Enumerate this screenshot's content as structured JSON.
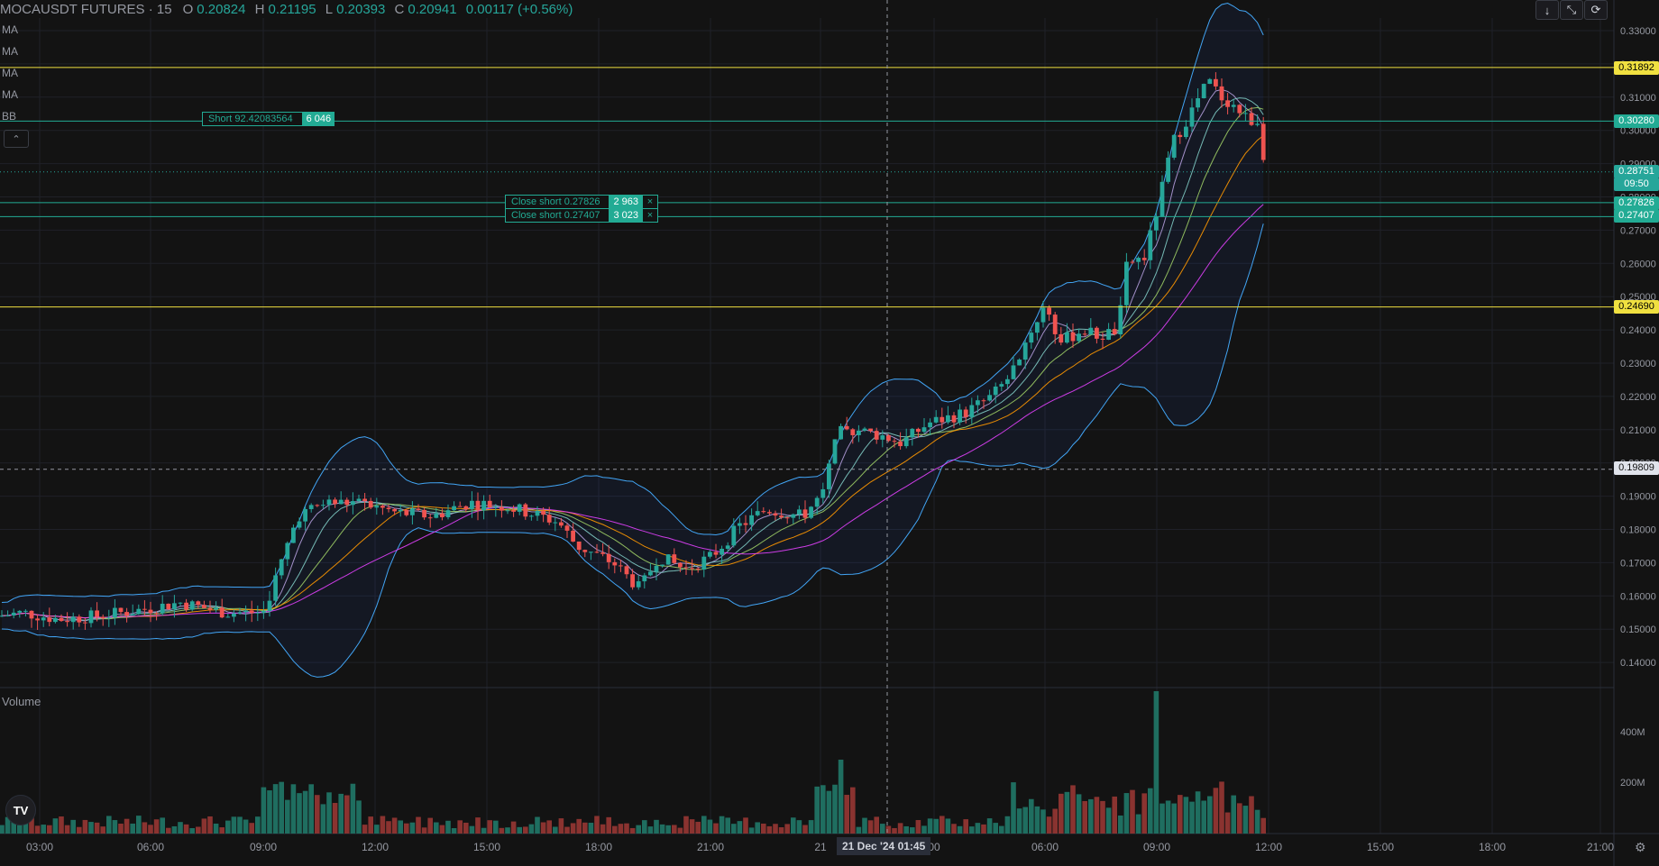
{
  "header": {
    "symbol": "MOCAUSDT FUTURES · 15",
    "ohlc": [
      {
        "k": "O",
        "v": "0.20824"
      },
      {
        "k": "H",
        "v": "0.21195"
      },
      {
        "k": "L",
        "v": "0.20393"
      },
      {
        "k": "C",
        "v": "0.20941"
      }
    ],
    "change": "0.00117 (+0.56%)"
  },
  "indicators": [
    "MA",
    "MA",
    "MA",
    "MA",
    "BB"
  ],
  "orders": {
    "short": {
      "label": "Short 92.42083564",
      "qty": "6 046"
    },
    "close1": {
      "label": "Close short 0.27826",
      "qty": "2 963",
      "close_icon": "×"
    },
    "close2": {
      "label": "Close short 0.27407",
      "qty": "3 023",
      "close_icon": "×"
    }
  },
  "price_axis": {
    "ticks": [
      "0.33000",
      "0.32000",
      "0.31000",
      "0.30000",
      "0.29000",
      "0.28000",
      "0.27000",
      "0.26000",
      "0.25000",
      "0.24000",
      "0.23000",
      "0.22000",
      "0.21000",
      "0.20000",
      "0.19000",
      "0.18000",
      "0.17000",
      "0.16000",
      "0.15000",
      "0.14000"
    ],
    "labels": {
      "resist_high": "0.31892",
      "entry": "0.30280",
      "last": "0.28751",
      "countdown": "09:50",
      "close1": "0.27826",
      "close2": "0.27407",
      "resist_low": "0.24690",
      "cursor": "0.19809"
    }
  },
  "volume": {
    "title": "Volume",
    "ticks": [
      "400M",
      "200M"
    ]
  },
  "time_axis": {
    "ticks": [
      "03:00",
      "06:00",
      "09:00",
      "12:00",
      "15:00",
      "18:00",
      "21:00",
      "21",
      "00",
      "06:00",
      "09:00",
      "12:00",
      "15:00",
      "18:00",
      "21:00"
    ],
    "cursor": "21 Dec '24   01:45"
  },
  "toolbar": {
    "down_icon": "↓",
    "collapse_icon": "⤡",
    "screen_icon": "⟳",
    "arrow_icon": "⌃"
  },
  "logo": "TV",
  "colors": {
    "up": "#26a69a",
    "down": "#ef5350",
    "level": "#f0e040",
    "order": "#22ab94",
    "bb": "#2962ff"
  }
}
